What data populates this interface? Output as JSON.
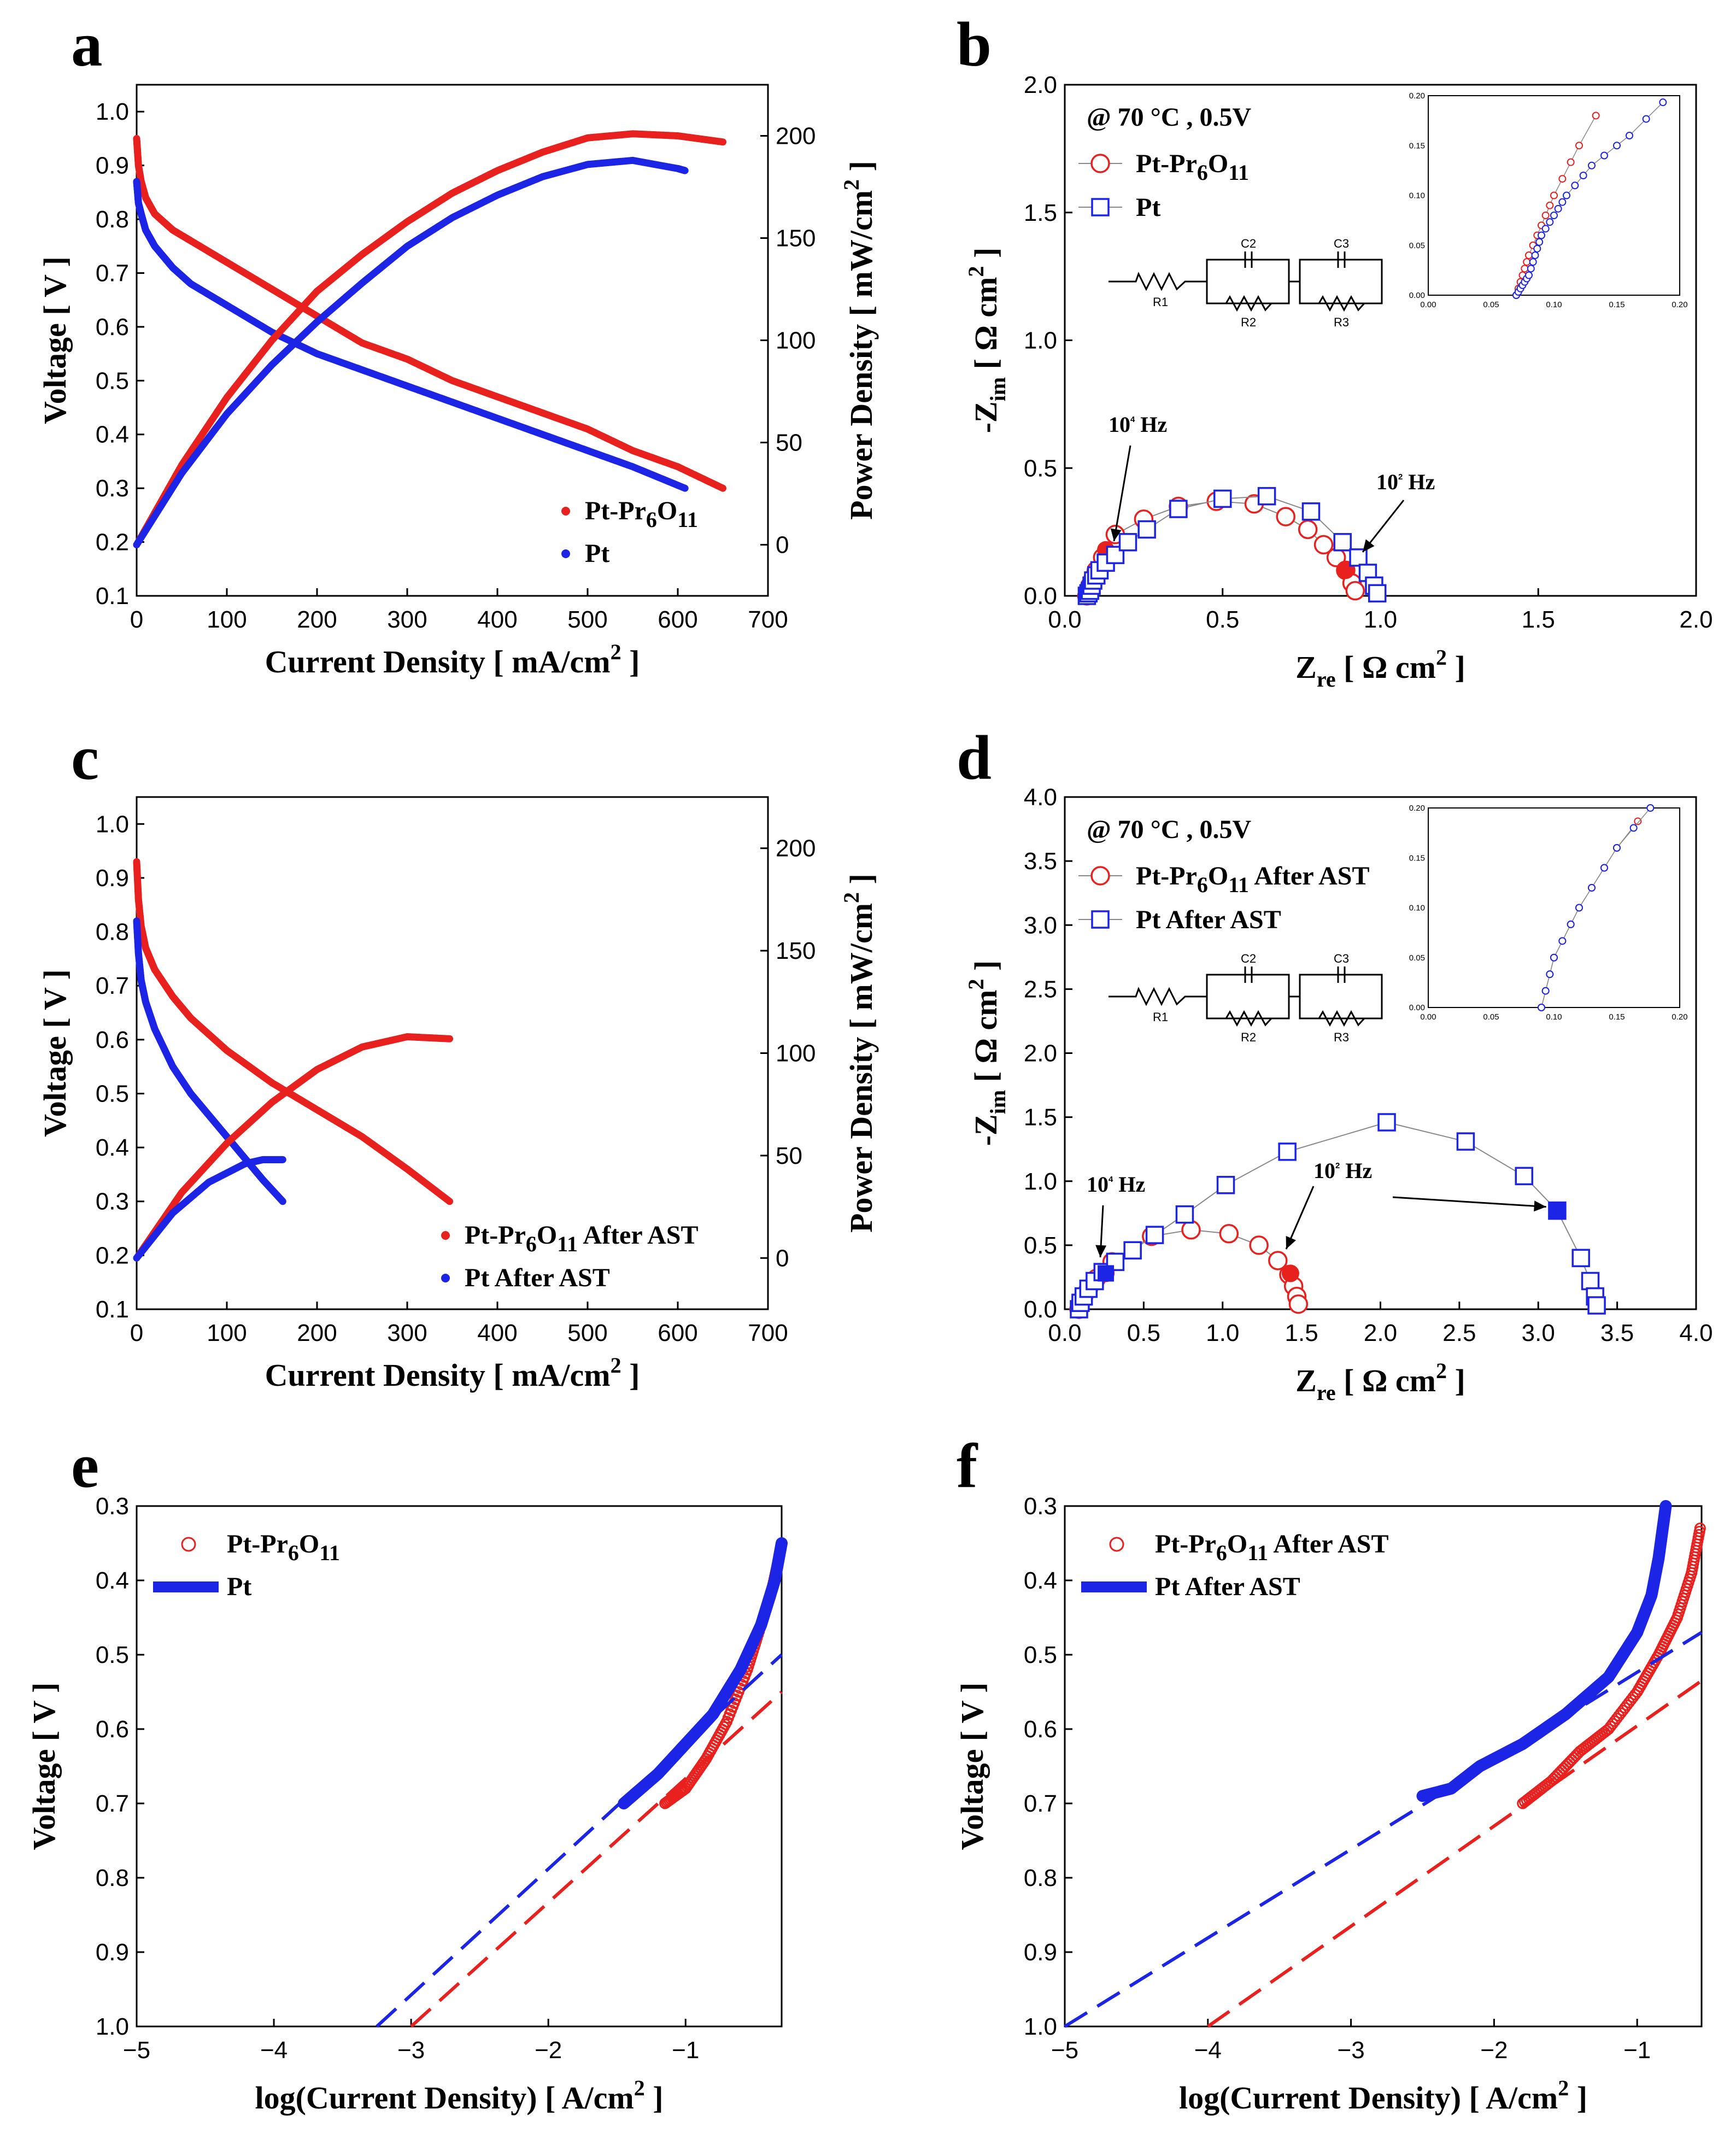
{
  "colors": {
    "red": "#e8201e",
    "blue": "#1c24e6",
    "grey": "#888888"
  },
  "chart_data": [
    {
      "id": "a",
      "panel": "a",
      "type": "line",
      "xlabel": "Current Density [ mA/cm",
      "xlabel_sup": "2",
      "xlabel_end": " ]",
      "ylabel": "Voltage [ V ]",
      "y2label": "Power Density [ mW/cm",
      "y2label_sup": "2",
      "y2label_end": " ]",
      "xlim": [
        0,
        700
      ],
      "ylim": [
        0.1,
        1.05
      ],
      "y2lim": [
        -25,
        225
      ],
      "xticks": [
        0,
        100,
        200,
        300,
        400,
        500,
        600,
        700
      ],
      "yticks": [
        0.1,
        0.2,
        0.3,
        0.4,
        0.5,
        0.6,
        0.7,
        0.8,
        0.9,
        1.0
      ],
      "y2ticks": [
        0,
        50,
        100,
        150,
        200
      ],
      "legend": [
        {
          "pre": "Pt-Pr",
          "sub1": "6",
          "mid": "O",
          "sub2": "11",
          "post": "",
          "color": "red"
        },
        {
          "pre": "Pt",
          "sub1": "",
          "mid": "",
          "sub2": "",
          "post": "",
          "color": "blue"
        }
      ],
      "series": [
        {
          "name": "Pt-Pr6O11 voltage",
          "axis": "y",
          "color": "red",
          "x": [
            0,
            2,
            5,
            10,
            20,
            40,
            60,
            100,
            150,
            200,
            250,
            300,
            350,
            400,
            450,
            500,
            550,
            600,
            650
          ],
          "y": [
            0.95,
            0.9,
            0.87,
            0.84,
            0.81,
            0.78,
            0.76,
            0.72,
            0.67,
            0.62,
            0.57,
            0.54,
            0.5,
            0.47,
            0.44,
            0.41,
            0.37,
            0.34,
            0.3
          ]
        },
        {
          "name": "Pt voltage",
          "axis": "y",
          "color": "blue",
          "x": [
            0,
            2,
            5,
            10,
            20,
            40,
            60,
            100,
            150,
            200,
            250,
            300,
            350,
            400,
            450,
            500,
            550,
            608
          ],
          "y": [
            0.87,
            0.83,
            0.81,
            0.78,
            0.75,
            0.71,
            0.68,
            0.64,
            0.59,
            0.55,
            0.52,
            0.49,
            0.46,
            0.43,
            0.4,
            0.37,
            0.34,
            0.3
          ]
        },
        {
          "name": "Pt-Pr6O11 power",
          "axis": "y2",
          "color": "red",
          "x": [
            0,
            50,
            100,
            150,
            200,
            250,
            300,
            350,
            400,
            450,
            500,
            550,
            600,
            650
          ],
          "y": [
            0,
            39,
            72,
            100,
            124,
            142,
            158,
            172,
            183,
            192,
            199,
            201,
            200,
            197
          ]
        },
        {
          "name": "Pt power",
          "axis": "y2",
          "color": "blue",
          "x": [
            0,
            50,
            100,
            150,
            200,
            250,
            300,
            350,
            400,
            450,
            500,
            550,
            600,
            608
          ],
          "y": [
            0,
            35,
            64,
            88,
            109,
            128,
            146,
            160,
            171,
            180,
            186,
            188,
            184,
            183
          ]
        }
      ]
    },
    {
      "id": "b",
      "panel": "b",
      "type": "scatter",
      "xlabel": "Z",
      "xlabel_sub": "re",
      "xlabel_end": " [ Ω cm",
      "xlabel_sup": "2",
      "xlabel_close": " ]",
      "ylabel": "-Z",
      "ylabel_sub": "im",
      "ylabel_end": " [ Ω cm",
      "ylabel_sup": "2",
      "ylabel_close": " ]",
      "xlim": [
        0,
        2.0
      ],
      "ylim": [
        0,
        2.0
      ],
      "xticks": [
        0.0,
        0.5,
        1.0,
        1.5,
        2.0
      ],
      "yticks": [
        0.0,
        0.5,
        1.0,
        1.5,
        2.0
      ],
      "conditions": "@ 70 °C , 0.5V",
      "legend": [
        {
          "pre": "Pt-Pr",
          "sub1": "6",
          "mid": "O",
          "sub2": "11",
          "post": "",
          "color": "red",
          "marker": "circle"
        },
        {
          "pre": "Pt",
          "sub1": "",
          "mid": "",
          "sub2": "",
          "post": "",
          "color": "blue",
          "marker": "square"
        }
      ],
      "annotations": [
        {
          "label": "10",
          "sup": "4",
          "end": " Hz"
        },
        {
          "label": "10",
          "sup": "2",
          "end": " Hz"
        }
      ],
      "circuit": [
        "R1",
        "C2",
        "R2",
        "C3",
        "R3"
      ],
      "inset": {
        "xlim": [
          0,
          0.2
        ],
        "ylim": [
          0,
          0.2
        ],
        "xticks": [
          "0.00",
          "0.05",
          "0.10",
          "0.15",
          "0.20"
        ],
        "yticks": [
          "0.00",
          "0.05",
          "0.10",
          "0.15",
          "0.20"
        ]
      },
      "series": [
        {
          "name": "Pt-Pr6O11",
          "color": "red",
          "marker": "circle",
          "x": [
            0.07,
            0.075,
            0.08,
            0.09,
            0.1,
            0.12,
            0.16,
            0.25,
            0.36,
            0.48,
            0.6,
            0.7,
            0.77,
            0.82,
            0.86,
            0.89,
            0.91,
            0.92
          ],
          "y": [
            0.0,
            0.02,
            0.04,
            0.07,
            0.1,
            0.15,
            0.24,
            0.3,
            0.35,
            0.37,
            0.36,
            0.31,
            0.26,
            0.2,
            0.15,
            0.1,
            0.05,
            0.02
          ],
          "filled": [
            0.13,
            0.18,
            0.89,
            0.1
          ]
        },
        {
          "name": "Pt",
          "color": "blue",
          "marker": "square",
          "x": [
            0.07,
            0.075,
            0.08,
            0.085,
            0.09,
            0.1,
            0.11,
            0.13,
            0.16,
            0.2,
            0.26,
            0.36,
            0.5,
            0.64,
            0.78,
            0.88,
            0.93,
            0.96,
            0.98,
            0.99
          ],
          "y": [
            0.0,
            0.01,
            0.02,
            0.04,
            0.06,
            0.08,
            0.1,
            0.13,
            0.16,
            0.21,
            0.26,
            0.34,
            0.38,
            0.39,
            0.33,
            0.21,
            0.15,
            0.09,
            0.04,
            0.01
          ],
          "filled": []
        }
      ]
    },
    {
      "id": "c",
      "panel": "c",
      "type": "line",
      "xlabel": "Current Density [ mA/cm",
      "xlabel_sup": "2",
      "xlabel_end": " ]",
      "ylabel": "Voltage [ V ]",
      "y2label": "Power Density [ mW/cm",
      "y2label_sup": "2",
      "y2label_end": " ]",
      "xlim": [
        0,
        700
      ],
      "ylim": [
        0.1,
        1.05
      ],
      "y2lim": [
        -25,
        225
      ],
      "xticks": [
        0,
        100,
        200,
        300,
        400,
        500,
        600,
        700
      ],
      "yticks": [
        0.1,
        0.2,
        0.3,
        0.4,
        0.5,
        0.6,
        0.7,
        0.8,
        0.9,
        1.0
      ],
      "y2ticks": [
        0,
        50,
        100,
        150,
        200
      ],
      "legend": [
        {
          "pre": "Pt-Pr",
          "sub1": "6",
          "mid": "O",
          "sub2": "11",
          "post": " After AST",
          "color": "red"
        },
        {
          "pre": "Pt After AST",
          "sub1": "",
          "mid": "",
          "sub2": "",
          "post": "",
          "color": "blue"
        }
      ],
      "series": [
        {
          "name": "Pt-Pr6O11 After AST voltage",
          "axis": "y",
          "color": "red",
          "x": [
            0,
            2,
            5,
            10,
            20,
            40,
            60,
            100,
            150,
            200,
            250,
            300,
            347
          ],
          "y": [
            0.93,
            0.86,
            0.81,
            0.77,
            0.73,
            0.68,
            0.64,
            0.58,
            0.52,
            0.47,
            0.42,
            0.36,
            0.3
          ]
        },
        {
          "name": "Pt After AST voltage",
          "axis": "y",
          "color": "blue",
          "x": [
            0,
            2,
            5,
            10,
            20,
            40,
            60,
            80,
            100,
            120,
            140,
            162
          ],
          "y": [
            0.82,
            0.76,
            0.71,
            0.67,
            0.62,
            0.55,
            0.5,
            0.46,
            0.42,
            0.38,
            0.34,
            0.3
          ]
        },
        {
          "name": "Pt-Pr6O11 After AST power",
          "axis": "y2",
          "color": "red",
          "x": [
            0,
            50,
            100,
            150,
            200,
            250,
            300,
            347
          ],
          "y": [
            0,
            32,
            56,
            76,
            92,
            103,
            108,
            107
          ]
        },
        {
          "name": "Pt After AST power",
          "axis": "y2",
          "color": "blue",
          "x": [
            0,
            40,
            80,
            120,
            140,
            162
          ],
          "y": [
            0,
            22,
            37,
            46,
            48,
            48
          ]
        }
      ]
    },
    {
      "id": "d",
      "panel": "d",
      "type": "scatter",
      "xlabel": "Z",
      "xlabel_sub": "re",
      "xlabel_end": " [ Ω cm",
      "xlabel_sup": "2",
      "xlabel_close": " ]",
      "ylabel": "-Z",
      "ylabel_sub": "im",
      "ylabel_end": " [ Ω cm",
      "ylabel_sup": "2",
      "ylabel_close": " ]",
      "xlim": [
        0,
        4.0
      ],
      "ylim": [
        0,
        4.0
      ],
      "xticks": [
        0.0,
        0.5,
        1.0,
        1.5,
        2.0,
        2.5,
        3.0,
        3.5,
        4.0
      ],
      "yticks": [
        0.0,
        0.5,
        1.0,
        1.5,
        2.0,
        2.5,
        3.0,
        3.5,
        4.0
      ],
      "conditions": "@ 70 °C , 0.5V",
      "legend": [
        {
          "pre": "Pt-Pr",
          "sub1": "6",
          "mid": "O",
          "sub2": "11",
          "post": " After AST",
          "color": "red",
          "marker": "circle"
        },
        {
          "pre": "Pt After AST",
          "sub1": "",
          "mid": "",
          "sub2": "",
          "post": "",
          "color": "blue",
          "marker": "square"
        }
      ],
      "annotations": [
        {
          "label": "10",
          "sup": "4",
          "end": " Hz"
        },
        {
          "label": "10",
          "sup": "2",
          "end": " Hz"
        }
      ],
      "circuit": [
        "R1",
        "C2",
        "R2",
        "C3",
        "R3"
      ],
      "inset": {
        "xlim": [
          0,
          0.2
        ],
        "ylim": [
          0,
          0.2
        ],
        "xticks": [
          "0.00",
          "0.05",
          "0.10",
          "0.15",
          "0.20"
        ],
        "yticks": [
          "0.00",
          "0.05",
          "0.10",
          "0.15",
          "0.20"
        ]
      },
      "series": [
        {
          "name": "Pt-Pr6O11 After AST",
          "color": "red",
          "marker": "circle",
          "x": [
            0.09,
            0.1,
            0.12,
            0.15,
            0.2,
            0.3,
            0.55,
            0.8,
            1.04,
            1.23,
            1.35,
            1.42,
            1.45,
            1.47,
            1.48
          ],
          "y": [
            0.0,
            0.05,
            0.1,
            0.16,
            0.24,
            0.37,
            0.57,
            0.62,
            0.59,
            0.5,
            0.38,
            0.27,
            0.18,
            0.1,
            0.04
          ],
          "filled": [
            0.26,
            0.28,
            1.43,
            0.28
          ]
        },
        {
          "name": "Pt After AST",
          "color": "blue",
          "marker": "square",
          "x": [
            0.09,
            0.1,
            0.12,
            0.15,
            0.19,
            0.24,
            0.32,
            0.43,
            0.57,
            0.76,
            1.02,
            1.41,
            2.04,
            2.54,
            2.91,
            3.12,
            3.27,
            3.33,
            3.36,
            3.37
          ],
          "y": [
            0.0,
            0.05,
            0.1,
            0.16,
            0.22,
            0.29,
            0.37,
            0.46,
            0.58,
            0.74,
            0.97,
            1.23,
            1.46,
            1.31,
            1.04,
            0.77,
            0.4,
            0.22,
            0.1,
            0.03
          ],
          "filled": [
            0.26,
            0.28,
            3.12,
            0.77
          ]
        }
      ]
    },
    {
      "id": "e",
      "panel": "e",
      "type": "line",
      "xlabel": "log(Current Density) [ A/cm",
      "xlabel_sup": "2",
      "xlabel_end": " ]",
      "ylabel": "Voltage [ V ]",
      "xlim": [
        -5,
        -0.3
      ],
      "ylim": [
        1.0,
        0.3
      ],
      "xticks": [
        -5,
        -4,
        -3,
        -2,
        -1
      ],
      "yticks": [
        0.3,
        0.4,
        0.5,
        0.6,
        0.7,
        0.8,
        0.9,
        1.0
      ],
      "legend": [
        {
          "pre": "Pt-Pr",
          "sub1": "6",
          "mid": "O",
          "sub2": "11",
          "post": "",
          "color": "red",
          "marker": "circle"
        },
        {
          "pre": "Pt",
          "sub1": "",
          "mid": "",
          "sub2": "",
          "post": "",
          "color": "blue",
          "marker": "line"
        }
      ],
      "series": [
        {
          "name": "Pt-Pr6O11",
          "color": "red",
          "marker": "circle",
          "x": [
            -1.15,
            -1.0,
            -0.85,
            -0.7,
            -0.55,
            -0.45,
            -0.38,
            -0.32
          ],
          "y": [
            0.7,
            0.68,
            0.64,
            0.59,
            0.52,
            0.46,
            0.42,
            0.37
          ]
        },
        {
          "name": "Pt",
          "color": "blue",
          "marker": "line",
          "x": [
            -1.45,
            -1.2,
            -1.0,
            -0.8,
            -0.6,
            -0.45,
            -0.35,
            -0.3
          ],
          "y": [
            0.7,
            0.66,
            0.62,
            0.58,
            0.52,
            0.46,
            0.4,
            0.35
          ]
        },
        {
          "name": "Pt-Pr6O11 Tafel fit",
          "color": "red",
          "marker": "dash",
          "x": [
            -3.0,
            -0.3
          ],
          "y": [
            1.0,
            0.55
          ]
        },
        {
          "name": "Pt Tafel fit",
          "color": "blue",
          "marker": "dash",
          "x": [
            -3.25,
            -0.3
          ],
          "y": [
            1.0,
            0.5
          ]
        }
      ]
    },
    {
      "id": "f",
      "panel": "f",
      "type": "line",
      "xlabel": "log(Current Density) [ A/cm",
      "xlabel_sup": "2",
      "xlabel_end": " ]",
      "ylabel": "Voltage [ V ]",
      "xlim": [
        -5,
        -0.55
      ],
      "ylim": [
        1.0,
        0.3
      ],
      "xticks": [
        -5,
        -4,
        -3,
        -2,
        -1
      ],
      "yticks": [
        0.3,
        0.4,
        0.5,
        0.6,
        0.7,
        0.8,
        0.9,
        1.0
      ],
      "legend": [
        {
          "pre": "Pt-Pr",
          "sub1": "6",
          "mid": "O",
          "sub2": "11",
          "post": " After AST",
          "color": "red",
          "marker": "circle"
        },
        {
          "pre": "Pt After AST",
          "sub1": "",
          "mid": "",
          "sub2": "",
          "post": "",
          "color": "blue",
          "marker": "line"
        }
      ],
      "series": [
        {
          "name": "Pt-Pr6O11 After AST",
          "color": "red",
          "marker": "circle",
          "x": [
            -1.8,
            -1.6,
            -1.4,
            -1.2,
            -1.0,
            -0.85,
            -0.72,
            -0.62,
            -0.56
          ],
          "y": [
            0.7,
            0.67,
            0.63,
            0.6,
            0.55,
            0.5,
            0.45,
            0.39,
            0.33
          ]
        },
        {
          "name": "Pt After AST",
          "color": "blue",
          "marker": "line",
          "x": [
            -2.5,
            -2.3,
            -2.1,
            -1.8,
            -1.5,
            -1.2,
            -1.0,
            -0.9,
            -0.85,
            -0.8
          ],
          "y": [
            0.69,
            0.68,
            0.65,
            0.62,
            0.58,
            0.53,
            0.47,
            0.42,
            0.37,
            0.3
          ]
        },
        {
          "name": "Pt-Pr6O11 After AST Tafel fit",
          "color": "red",
          "marker": "dash",
          "x": [
            -4.0,
            -0.55
          ],
          "y": [
            1.0,
            0.535
          ]
        },
        {
          "name": "Pt After AST Tafel fit",
          "color": "blue",
          "marker": "dash",
          "x": [
            -5.0,
            -0.55
          ],
          "y": [
            1.0,
            0.47
          ]
        }
      ]
    }
  ]
}
